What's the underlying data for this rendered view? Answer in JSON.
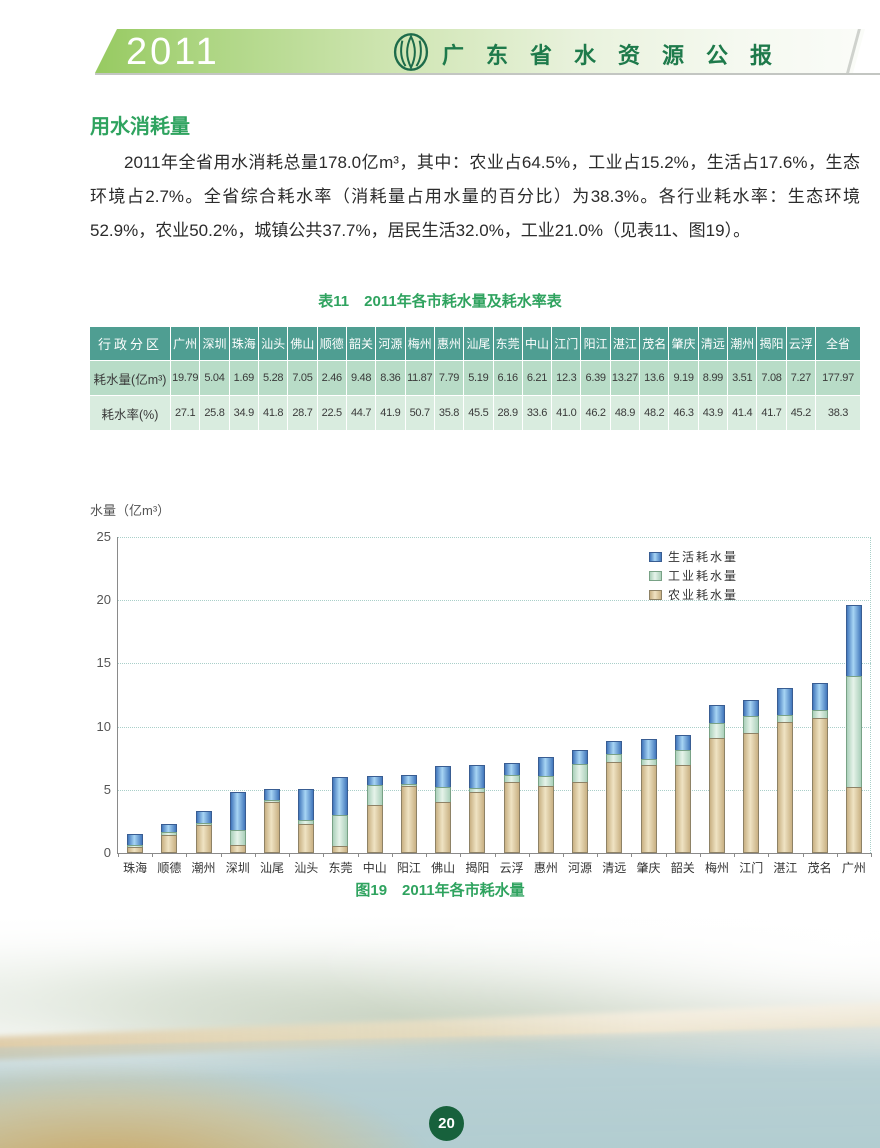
{
  "header": {
    "year": "2011",
    "title": "广东省水资源公报",
    "logo_icon": "water-bureau-emblem"
  },
  "section": {
    "title": "用水消耗量",
    "paragraph": "2011年全省用水消耗总量178.0亿m³，其中：农业占64.5%，工业占15.2%，生活占17.6%，生态环境占2.7%。全省综合耗水率（消耗量占用水量的百分比）为38.3%。各行业耗水率：生态环境52.9%，农业50.2%，城镇公共37.7%，居民生活32.0%，工业21.0%（见表11、图19）。"
  },
  "table": {
    "title": "表11　2011年各市耗水量及耗水率表",
    "header_label": "行政分区",
    "columns": [
      "广州",
      "深圳",
      "珠海",
      "汕头",
      "佛山",
      "顺德",
      "韶关",
      "河源",
      "梅州",
      "惠州",
      "汕尾",
      "东莞",
      "中山",
      "江门",
      "阳江",
      "湛江",
      "茂名",
      "肇庆",
      "清远",
      "潮州",
      "揭阳",
      "云浮",
      "全省"
    ],
    "rows": [
      {
        "label": "耗水量(亿m³)",
        "values": [
          "19.79",
          "5.04",
          "1.69",
          "5.28",
          "7.05",
          "2.46",
          "9.48",
          "8.36",
          "11.87",
          "7.79",
          "5.19",
          "6.16",
          "6.21",
          "12.3",
          "6.39",
          "13.27",
          "13.6",
          "9.19",
          "8.99",
          "3.51",
          "7.08",
          "7.27",
          "177.97"
        ]
      },
      {
        "label": "耗水率(%)",
        "values": [
          "27.1",
          "25.8",
          "34.9",
          "41.8",
          "28.7",
          "22.5",
          "44.7",
          "41.9",
          "50.7",
          "35.8",
          "45.5",
          "28.9",
          "33.6",
          "41.0",
          "46.2",
          "48.9",
          "48.2",
          "46.3",
          "43.9",
          "41.4",
          "41.7",
          "45.2",
          "38.3"
        ]
      }
    ]
  },
  "chart_data": {
    "type": "bar",
    "stacked": true,
    "title": "图19　2011年各市耗水量",
    "ylabel": "水量（亿m³）",
    "ylim": [
      0,
      25
    ],
    "yticks": [
      0,
      5,
      10,
      15,
      20,
      25
    ],
    "grid": "horizontal dotted",
    "legend_position": "top-right",
    "legend_order": [
      "生活耗水量",
      "工业耗水量",
      "农业耗水量"
    ],
    "categories": [
      "珠海",
      "顺德",
      "潮州",
      "深圳",
      "汕尾",
      "汕头",
      "东莞",
      "中山",
      "阳江",
      "佛山",
      "揭阳",
      "云浮",
      "惠州",
      "河源",
      "清远",
      "肇庆",
      "韶关",
      "梅州",
      "江门",
      "湛江",
      "茂名",
      "广州"
    ],
    "series": [
      {
        "name": "农业耗水量",
        "color": "#c9b184",
        "light": "#efe3c3",
        "border": "#8e8266",
        "values": [
          0.5,
          1.4,
          2.2,
          0.65,
          4.05,
          2.3,
          0.55,
          3.8,
          5.3,
          4.0,
          4.8,
          5.65,
          5.3,
          5.65,
          7.2,
          7.0,
          7.0,
          9.1,
          9.5,
          10.4,
          10.7,
          5.2
        ]
      },
      {
        "name": "工业耗水量",
        "color": "#abd0ba",
        "light": "#e6f3ea",
        "border": "#79a286",
        "values": [
          0.25,
          0.35,
          0.25,
          1.3,
          0.2,
          0.43,
          2.5,
          1.65,
          0.27,
          1.3,
          0.4,
          0.6,
          0.9,
          1.5,
          0.7,
          0.55,
          1.25,
          1.25,
          1.45,
          0.65,
          0.7,
          8.9
        ]
      },
      {
        "name": "生活耗水量",
        "color": "#4277bc",
        "light": "#a7d5f4",
        "border": "#395d92",
        "values": [
          0.94,
          0.71,
          1.06,
          3.09,
          0.94,
          2.55,
          3.11,
          0.76,
          0.82,
          1.75,
          1.88,
          1.02,
          1.59,
          1.21,
          1.09,
          1.64,
          1.23,
          1.52,
          1.35,
          2.22,
          2.2,
          5.69
        ]
      }
    ],
    "totals": [
      1.69,
      2.46,
      3.51,
      5.04,
      5.19,
      5.28,
      6.16,
      6.21,
      6.39,
      7.05,
      7.08,
      7.27,
      7.79,
      8.36,
      8.99,
      9.19,
      9.48,
      11.87,
      12.3,
      13.27,
      13.6,
      19.79
    ]
  },
  "footer": {
    "page_number": "20"
  },
  "colors": {
    "accent_green": "#2fa35f",
    "band_green": "#97ca61",
    "title_green": "#1e7a4b",
    "table_header_teal": "#4f9e92",
    "table_row1_bg": "#b8dcc7",
    "table_row2_bg": "#d9ecdf",
    "page_badge_green": "#17613c"
  }
}
